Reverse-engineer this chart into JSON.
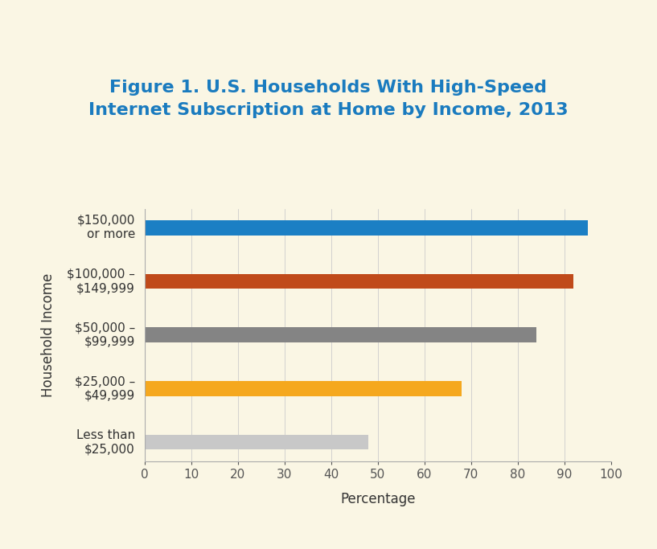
{
  "title_line1": "Figure 1. U.S. Households With High-Speed",
  "title_line2": "Internet Subscription at Home by Income, 2013",
  "title_color": "#1a7bbf",
  "background_color": "#faf6e4",
  "categories": [
    "Less than\n$25,000",
    "$25,000 –\n$49,999",
    "$50,000 –\n$99,999",
    "$100,000 –\n$149,999",
    "$150,000\nor more"
  ],
  "values": [
    48,
    68,
    84,
    92,
    95
  ],
  "bar_colors": [
    "#c8c8c8",
    "#f5a81e",
    "#848484",
    "#c04a1a",
    "#1b7fc4"
  ],
  "xlabel": "Percentage",
  "ylabel": "Household Income",
  "xlim": [
    0,
    100
  ],
  "xticks": [
    0,
    10,
    20,
    30,
    40,
    50,
    60,
    70,
    80,
    90,
    100
  ],
  "xlabel_fontsize": 12,
  "ylabel_fontsize": 12,
  "tick_fontsize": 11,
  "ytick_fontsize": 11,
  "title_fontsize": 16,
  "bar_height": 0.28
}
